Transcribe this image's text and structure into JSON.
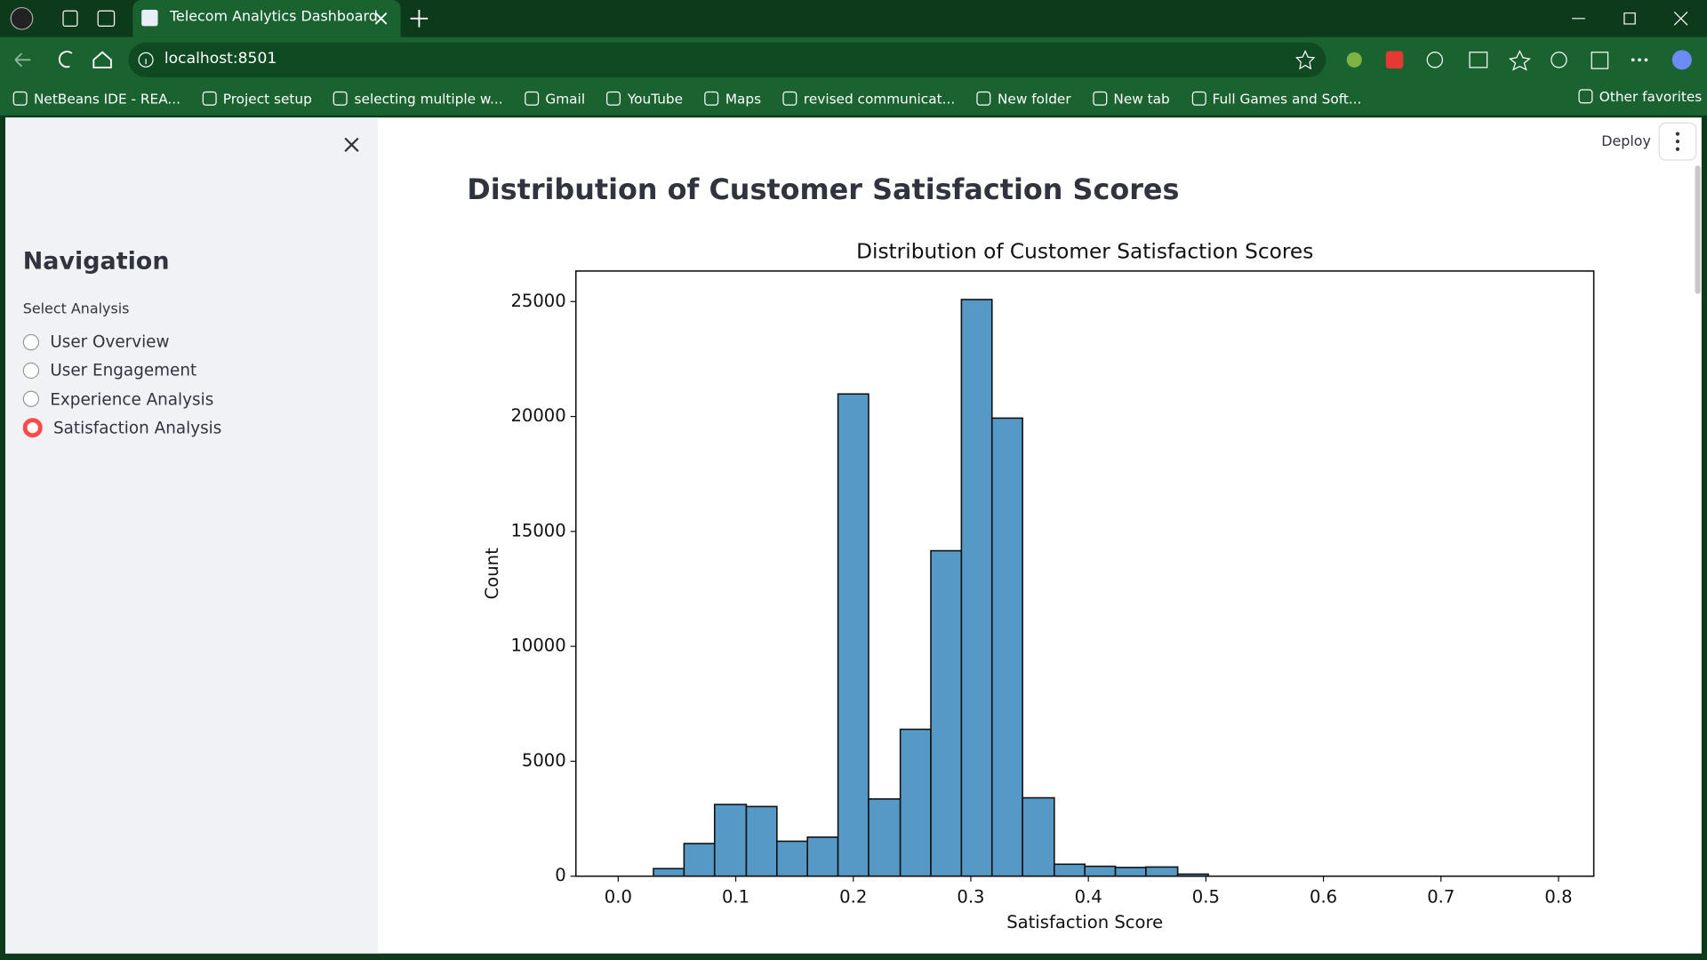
{
  "browser": {
    "tab_title": "Telecom Analytics Dashboard",
    "url": "localhost:8501",
    "bookmarks": [
      "NetBeans IDE - REA...",
      "Project setup",
      "selecting multiple w...",
      "Gmail",
      "YouTube",
      "Maps",
      "revised communicat...",
      "New folder",
      "New tab",
      "Full Games and Soft..."
    ],
    "other_favorites": "Other favorites"
  },
  "app": {
    "deploy": "Deploy",
    "page_title": "Distribution of Customer Satisfaction Scores",
    "sidebar": {
      "title": "Navigation",
      "label": "Select Analysis",
      "options": [
        "User Overview",
        "User Engagement",
        "Experience Analysis",
        "Satisfaction Analysis"
      ],
      "selected": 3
    }
  },
  "chart_data": {
    "type": "histogram",
    "title": "Distribution of Customer Satisfaction Scores",
    "x_label": "Satisfaction Score",
    "y_label": "Count",
    "bins": [
      0.03,
      0.056,
      0.082,
      0.109,
      0.135,
      0.161,
      0.187,
      0.213,
      0.24,
      0.266,
      0.292,
      0.318,
      0.344,
      0.371,
      0.397,
      0.423,
      0.449,
      0.476,
      0.502
    ],
    "values": [
      330,
      1420,
      3120,
      3030,
      1520,
      1700,
      20980,
      3360,
      6390,
      14160,
      25090,
      19930,
      3410,
      520,
      430,
      380,
      400,
      90
    ],
    "color": "#5799c6",
    "xlim": [
      -0.036,
      0.83
    ],
    "xticks": [
      {
        "value": 0,
        "label": "0.0"
      },
      0.1,
      0.2,
      0.3,
      0.4,
      0.5,
      0.6,
      0.7,
      0.8
    ],
    "ylim": [
      0,
      26330
    ],
    "yticks": [
      0,
      5000,
      10000,
      15000,
      20000,
      25000
    ]
  }
}
